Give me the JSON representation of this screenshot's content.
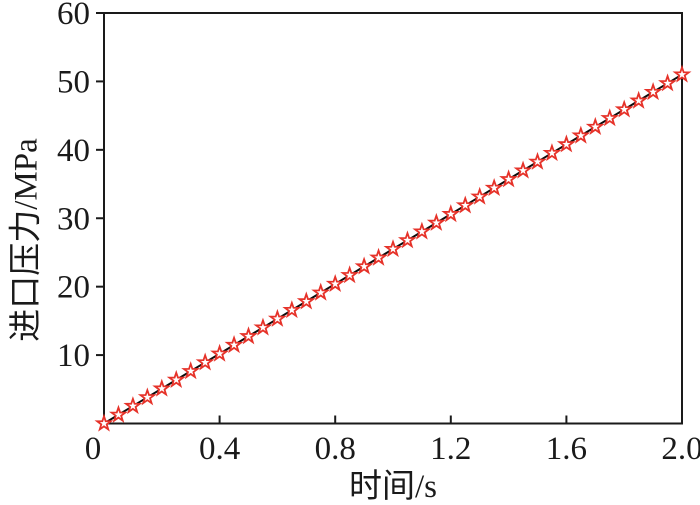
{
  "chart_data": {
    "type": "line",
    "title": "",
    "xlabel": "时间/s",
    "ylabel": "进口压力/MPa",
    "xlim": [
      0,
      2
    ],
    "ylim": [
      0,
      60
    ],
    "grid": false,
    "legend": null,
    "frame": "full-box",
    "x_ticks": {
      "values": [
        0,
        0.4,
        0.8,
        1.2,
        1.6,
        2.0
      ],
      "labels": [
        "0",
        "0.4",
        "0.8",
        "1.2",
        "1.6",
        "2.0"
      ],
      "direction": "in"
    },
    "y_ticks": {
      "values": [
        10,
        20,
        30,
        40,
        50,
        60
      ],
      "labels": [
        "10",
        "20",
        "30",
        "40",
        "50",
        "60"
      ],
      "direction": "out"
    },
    "series": [
      {
        "name": "inlet-pressure",
        "marker": "open-star",
        "marker_color": "#e63229",
        "marker_fill": "#ffffff",
        "line_color": "#0d0d0d",
        "line_style": "solid",
        "x": [
          0,
          0.05,
          0.1,
          0.15,
          0.2,
          0.25,
          0.3,
          0.35,
          0.4,
          0.45,
          0.5,
          0.55,
          0.6,
          0.65,
          0.7,
          0.75,
          0.8,
          0.85,
          0.9,
          0.95,
          1,
          1.05,
          1.1,
          1.15,
          1.2,
          1.25,
          1.3,
          1.35,
          1.4,
          1.45,
          1.5,
          1.55,
          1.6,
          1.65,
          1.7,
          1.75,
          1.8,
          1.85,
          1.9,
          1.95,
          2
        ],
        "y": [
          0,
          1.275,
          2.55,
          3.825,
          5.1,
          6.375,
          7.65,
          8.925,
          10.2,
          11.475,
          12.75,
          14.025,
          15.3,
          16.575,
          17.85,
          19.125,
          20.4,
          21.675,
          22.95,
          24.225,
          25.5,
          26.775,
          28.05,
          29.325,
          30.6,
          31.875,
          33.15,
          34.425,
          35.7,
          36.975,
          38.25,
          39.525,
          40.8,
          42.075,
          43.35,
          44.625,
          45.9,
          47.175,
          48.45,
          49.725,
          51
        ]
      }
    ]
  },
  "colors": {
    "background": "#ffffff",
    "frame": "#1a1a1a",
    "text": "#1a1a1a"
  }
}
